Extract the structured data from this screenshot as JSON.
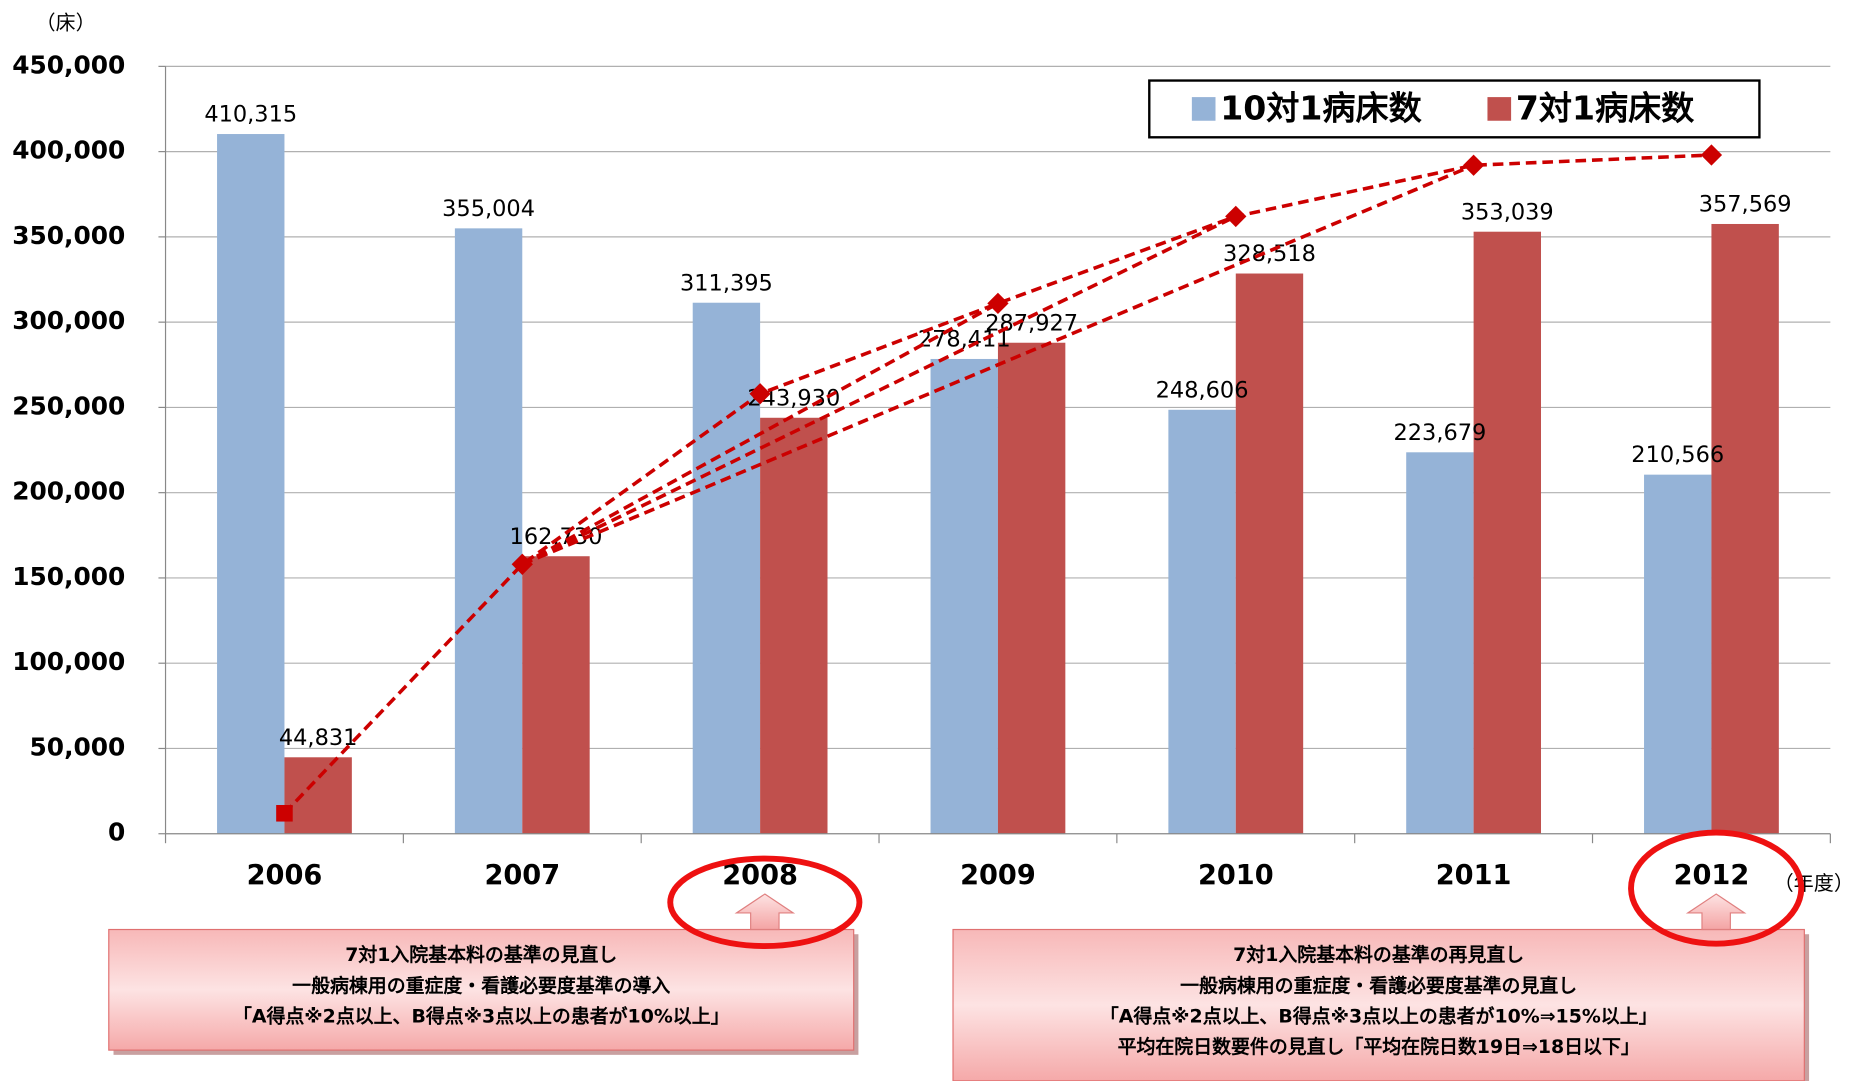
{
  "chart_data": {
    "type": "bar",
    "y_unit_label": "（床）",
    "x_unit_label": "（年度）",
    "categories": [
      "2006",
      "2007",
      "2008",
      "2009",
      "2010",
      "2011",
      "2012"
    ],
    "series": [
      {
        "name": "10対1病床数",
        "color": "#95b3d7",
        "values": [
          410315,
          355004,
          311395,
          278411,
          248606,
          223679,
          210566
        ],
        "value_labels": [
          "410,315",
          "355,004",
          "311,395",
          "278,411",
          "248,606",
          "223,679",
          "210,566"
        ]
      },
      {
        "name": "7対1病床数",
        "color": "#c0504d",
        "values": [
          44831,
          162730,
          243930,
          287927,
          328518,
          353039,
          357569
        ],
        "value_labels": [
          "44,831",
          "162,730",
          "243,930",
          "287,927",
          "328,518",
          "353,039",
          "357,569"
        ]
      }
    ],
    "trend_line": {
      "type": "line",
      "color": "#cc0000",
      "values": [
        12000,
        158000,
        258000,
        311000,
        362000,
        392000,
        398000
      ]
    },
    "ylim": [
      0,
      450000
    ],
    "yticks": [
      {
        "value": 0,
        "label": "0"
      },
      {
        "value": 50000,
        "label": "50,000"
      },
      {
        "value": 100000,
        "label": "100,000"
      },
      {
        "value": 150000,
        "label": "150,000"
      },
      {
        "value": 200000,
        "label": "200,000"
      },
      {
        "value": 250000,
        "label": "250,000"
      },
      {
        "value": 300000,
        "label": "300,000"
      },
      {
        "value": 350000,
        "label": "350,000"
      },
      {
        "value": 400000,
        "label": "400,000"
      },
      {
        "value": 450000,
        "label": "450,000"
      }
    ],
    "grid": true,
    "legend": "top-right",
    "annotations": [
      {
        "category": "2008",
        "lines": [
          "7対1入院基本料の基準の見直し",
          "一般病棟用の重症度・看護必要度基準の導入",
          "「A得点※2点以上、B得点※3点以上の患者が10%以上」"
        ]
      },
      {
        "category": "2012",
        "lines": [
          "7対1入院基本料の基準の再見直し",
          "一般病棟用の重症度・看護必要度基準の見直し",
          "「A得点※2点以上、B得点※3点以上の患者が10%⇒15%以上」",
          "平均在院日数要件の見直し「平均在院日数19日⇒18日以下」"
        ]
      }
    ]
  }
}
